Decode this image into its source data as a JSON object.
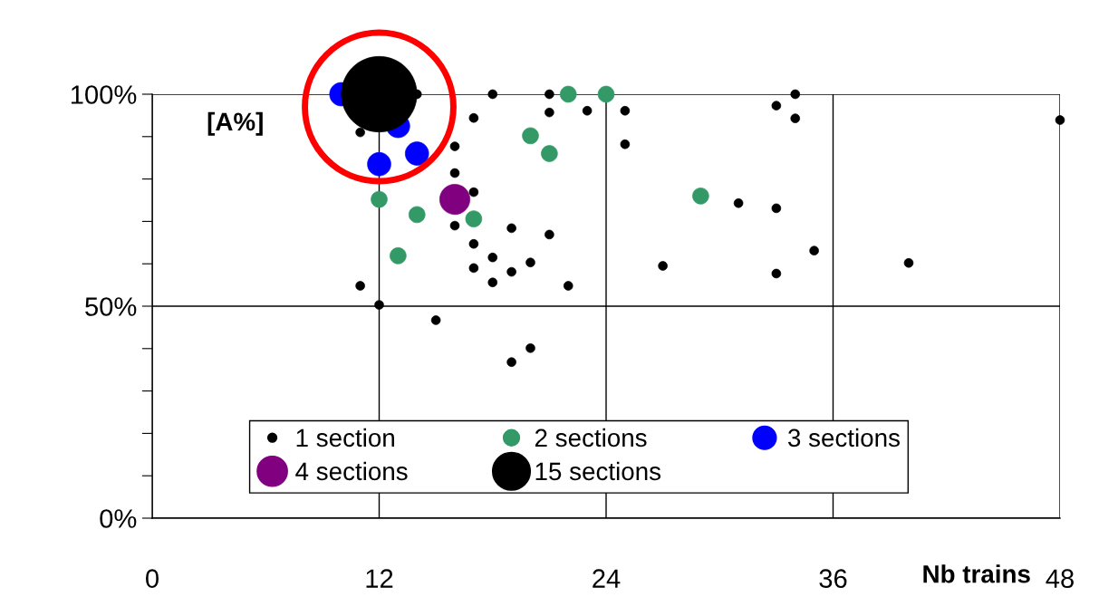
{
  "chart_data": {
    "type": "bubble",
    "xlabel": "Nb trains",
    "ylabel": "[A%]",
    "xlim": [
      0,
      48
    ],
    "xticks": [
      0,
      12,
      24,
      36,
      48
    ],
    "ylim": [
      0,
      100
    ],
    "yticks": [
      {
        "value": 0,
        "label": "0%"
      },
      {
        "value": 10,
        "label": null
      },
      {
        "value": 20,
        "label": null
      },
      {
        "value": 30,
        "label": null
      },
      {
        "value": 40,
        "label": null
      },
      {
        "value": 50,
        "label": "50%"
      },
      {
        "value": 60,
        "label": null
      },
      {
        "value": 70,
        "label": null
      },
      {
        "value": 80,
        "label": null
      },
      {
        "value": 90,
        "label": null
      },
      {
        "value": 100,
        "label": "100%"
      }
    ],
    "grid": true,
    "legend": "bottom",
    "marker": "circle",
    "series": [
      {
        "name": "1 section",
        "color": "#000000",
        "sizes": [
          0.014,
          0.014,
          0.014,
          0.014,
          0.014,
          0.014,
          0.014,
          0.014,
          0.014,
          0.014,
          0.014,
          0.014,
          0.014,
          0.014,
          0.014,
          0.014,
          0.014,
          0.014,
          0.014,
          0.014,
          0.014,
          0.014,
          0.014,
          0.014,
          0.014,
          0.014,
          0.014,
          0.014,
          0.014,
          0.014,
          0.014,
          0.014,
          0.014,
          0.014,
          0.014,
          0.014,
          0.014
        ],
        "x": [
          18,
          21,
          14,
          17,
          21,
          23,
          25,
          25,
          11,
          16,
          16,
          17,
          16,
          19,
          21,
          17,
          18,
          20,
          17,
          19,
          18,
          22,
          11,
          27,
          15,
          12,
          19,
          20,
          34,
          33,
          34,
          48,
          31,
          33,
          35,
          33,
          40
        ],
        "values": [
          100,
          100,
          100,
          94.4,
          95.7,
          96.1,
          96.1,
          88.2,
          91,
          87.7,
          81.4,
          76.9,
          69,
          68.4,
          66.9,
          64.7,
          61.5,
          60.3,
          59,
          58.1,
          55.6,
          54.8,
          54.8,
          59.5,
          46.7,
          50.3,
          36.8,
          40.1,
          100,
          97.3,
          94.3,
          93.9,
          74.3,
          73.1,
          63.1,
          57.7,
          60.2
        ]
      },
      {
        "name": "2 sections",
        "color": "#339966",
        "sizes": [
          0.046,
          0.046,
          0.046,
          0.046,
          0.046,
          0.046,
          0.046,
          0.046,
          0.046
        ],
        "x": [
          22,
          24,
          20,
          21,
          12,
          14,
          17,
          13,
          29
        ],
        "values": [
          100,
          100,
          90.2,
          86,
          75.2,
          71.6,
          70.6,
          61.9,
          76
        ]
      },
      {
        "name": "3 sections",
        "color": "#0000ff",
        "sizes": [
          0.096,
          0.096,
          0.096,
          0.096
        ],
        "x": [
          10,
          13,
          12,
          14
        ],
        "values": [
          100,
          92.5,
          83.5,
          86
        ]
      },
      {
        "name": "4 sections",
        "color": "#800080",
        "sizes": [
          0.16
        ],
        "x": [
          16
        ],
        "values": [
          75.2
        ]
      },
      {
        "name": "15 sections",
        "color": "#000000",
        "sizes": [
          1
        ],
        "x": [
          12
        ],
        "values": [
          100
        ]
      }
    ]
  }
}
